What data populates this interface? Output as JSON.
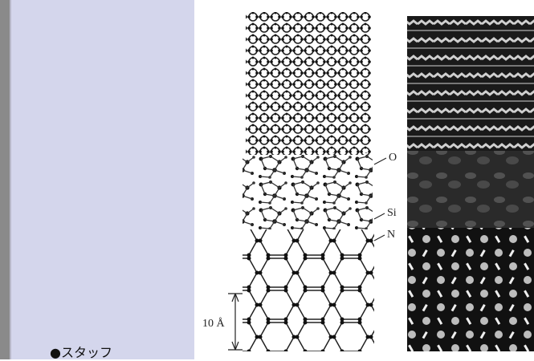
{
  "sidebar": {
    "heading": "●スタッフ"
  },
  "figure": {
    "labels": {
      "o": "O",
      "si": "Si",
      "n": "N"
    },
    "scale_bar": "10 Å"
  }
}
